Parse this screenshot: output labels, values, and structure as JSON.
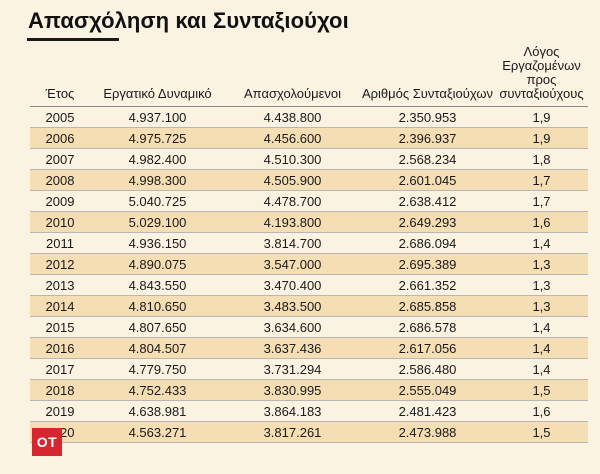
{
  "title": "Απασχόληση και Συνταξιούχοι",
  "logo_text": "OT",
  "chart_data": {
    "type": "table",
    "title": "Απασχόληση και Συνταξιούχοι",
    "columns": [
      "Έτος",
      "Εργατικό Δυναμικό",
      "Απασχολούμενοι",
      "Αριθμός Συνταξιούχων",
      "Λόγος Εργαζομένων προς συνταξιούχους"
    ],
    "rows": [
      [
        "2005",
        "4.937.100",
        "4.438.800",
        "2.350.953",
        "1,9"
      ],
      [
        "2006",
        "4.975.725",
        "4.456.600",
        "2.396.937",
        "1,9"
      ],
      [
        "2007",
        "4.982.400",
        "4.510.300",
        "2.568.234",
        "1,8"
      ],
      [
        "2008",
        "4.998.300",
        "4.505.900",
        "2.601.045",
        "1,7"
      ],
      [
        "2009",
        "5.040.725",
        "4.478.700",
        "2.638.412",
        "1,7"
      ],
      [
        "2010",
        "5.029.100",
        "4.193.800",
        "2.649.293",
        "1,6"
      ],
      [
        "2011",
        "4.936.150",
        "3.814.700",
        "2.686.094",
        "1,4"
      ],
      [
        "2012",
        "4.890.075",
        "3.547.000",
        "2.695.389",
        "1,3"
      ],
      [
        "2013",
        "4.843.550",
        "3.470.400",
        "2.661.352",
        "1,3"
      ],
      [
        "2014",
        "4.810.650",
        "3.483.500",
        "2.685.858",
        "1,3"
      ],
      [
        "2015",
        "4.807.650",
        "3.634.600",
        "2.686.578",
        "1,4"
      ],
      [
        "2016",
        "4.804.507",
        "3.637.436",
        "2.617.056",
        "1,4"
      ],
      [
        "2017",
        "4.779.750",
        "3.731.294",
        "2.586.480",
        "1,4"
      ],
      [
        "2018",
        "4.752.433",
        "3.830.995",
        "2.555.049",
        "1,5"
      ],
      [
        "2019",
        "4.638.981",
        "3.864.183",
        "2.481.423",
        "1,6"
      ],
      [
        "2020",
        "4.563.271",
        "3.817.261",
        "2.473.988",
        "1,5"
      ]
    ]
  }
}
